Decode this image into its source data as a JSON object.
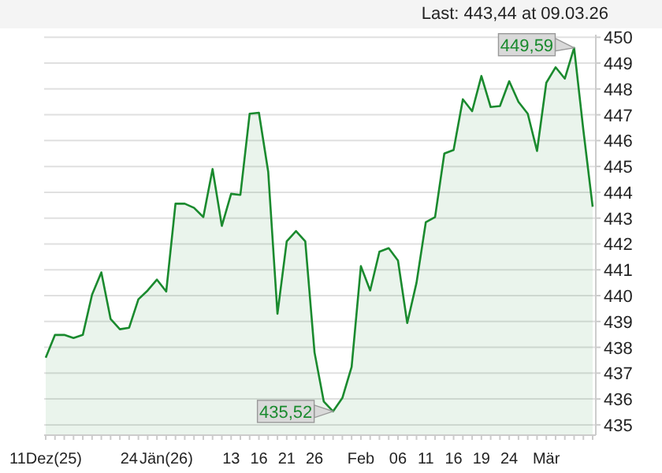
{
  "chart_data": {
    "type": "area",
    "title": "Last: 443,44 at 09.03.26",
    "categories": [
      "11Dez(25)",
      null,
      null,
      null,
      null,
      null,
      null,
      null,
      null,
      "24",
      null,
      null,
      null,
      "Jän(26)",
      null,
      null,
      null,
      null,
      null,
      null,
      "13",
      null,
      null,
      "16",
      null,
      null,
      "21",
      null,
      null,
      "26",
      null,
      null,
      null,
      null,
      "Feb",
      null,
      null,
      null,
      "06",
      null,
      null,
      "11",
      null,
      null,
      "16",
      null,
      null,
      "19",
      null,
      null,
      "24",
      null,
      null,
      null,
      "Mär",
      null,
      null,
      null,
      null,
      null
    ],
    "series": [
      {
        "color": "#1a8a2e",
        "values": [
          437.6,
          438.48,
          438.48,
          438.36,
          438.48,
          440.04,
          440.9,
          439.1,
          438.7,
          438.76,
          439.86,
          440.2,
          440.62,
          440.16,
          443.56,
          443.56,
          443.4,
          443.04,
          444.9,
          442.7,
          443.94,
          443.9,
          447.04,
          447.08,
          444.8,
          439.3,
          442.1,
          442.5,
          442.1,
          437.8,
          435.9,
          435.52,
          436.04,
          437.24,
          441.14,
          440.2,
          441.7,
          441.84,
          441.36,
          438.94,
          440.5,
          442.84,
          443.04,
          445.5,
          445.64,
          447.6,
          447.14,
          448.5,
          447.3,
          447.34,
          448.3,
          447.5,
          447.04,
          445.6,
          448.24,
          448.84,
          448.4,
          449.59,
          446.4,
          443.44
        ]
      }
    ],
    "ylim": [
      434.6,
      450.1
    ],
    "yticks": [
      435,
      436,
      437,
      438,
      439,
      440,
      441,
      442,
      443,
      444,
      445,
      446,
      447,
      448,
      449,
      450
    ],
    "grid": "y",
    "marker": "none",
    "line_style": "solid",
    "annotations": [
      "449,59",
      "435,52"
    ]
  }
}
